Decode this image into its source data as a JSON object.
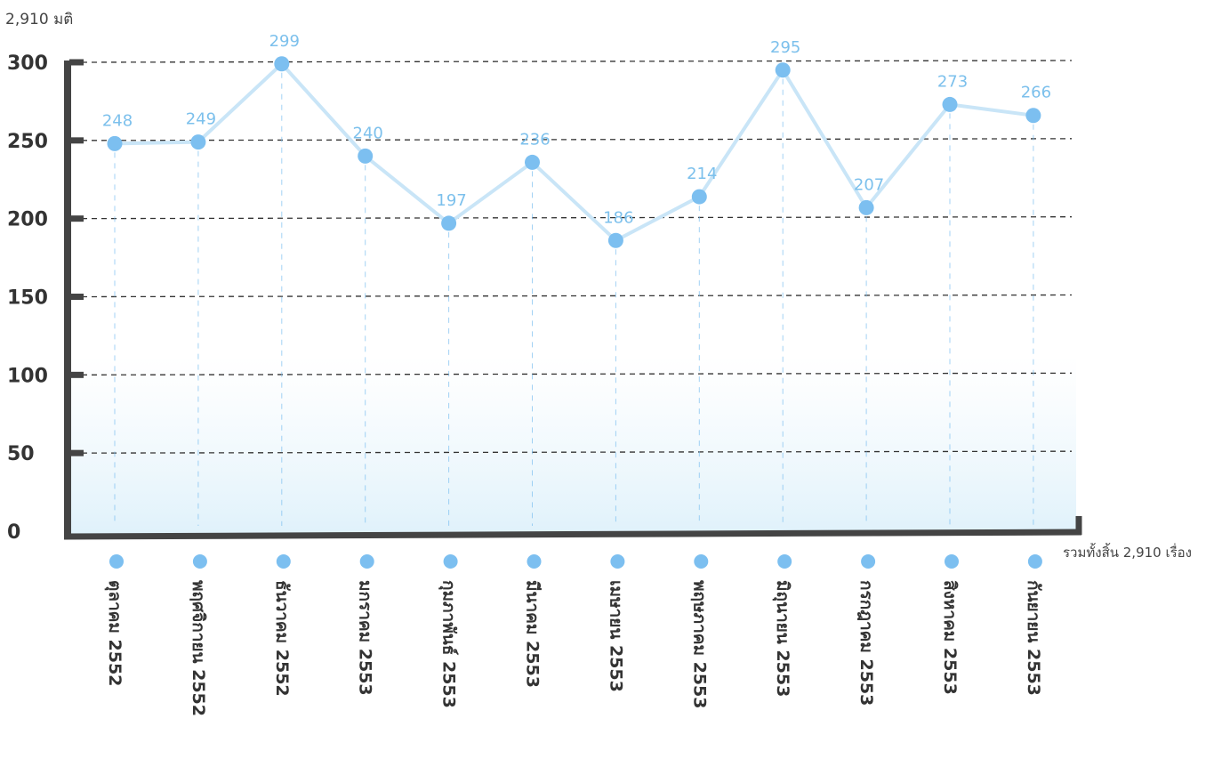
{
  "chart_data": {
    "type": "line",
    "title": "2,910 มติ",
    "total_note": "รวมทั้งสิ้น 2,910 เรื่อง",
    "categories": [
      "ตุลาคม 2552",
      "พฤศจิกายน 2552",
      "ธันวาคม 2552",
      "มกราคม 2553",
      "กุมภาพันธ์ 2553",
      "มีนาคม 2553",
      "เมษายน 2553",
      "พฤษภาคม 2553",
      "มิถุนายน 2553",
      "กรกฎาคม 2553",
      "สิงหาคม 2553",
      "กันยายน 2553"
    ],
    "values": [
      248,
      249,
      299,
      240,
      197,
      236,
      186,
      214,
      295,
      207,
      273,
      266
    ],
    "yticks": [
      0,
      50,
      100,
      150,
      200,
      250,
      300
    ],
    "ylim": [
      0,
      300
    ],
    "grid": true,
    "colors": {
      "line": "#c9e5f7",
      "marker": "#7cbff0",
      "label": "#7cc0ec",
      "axis": "#444444"
    }
  }
}
